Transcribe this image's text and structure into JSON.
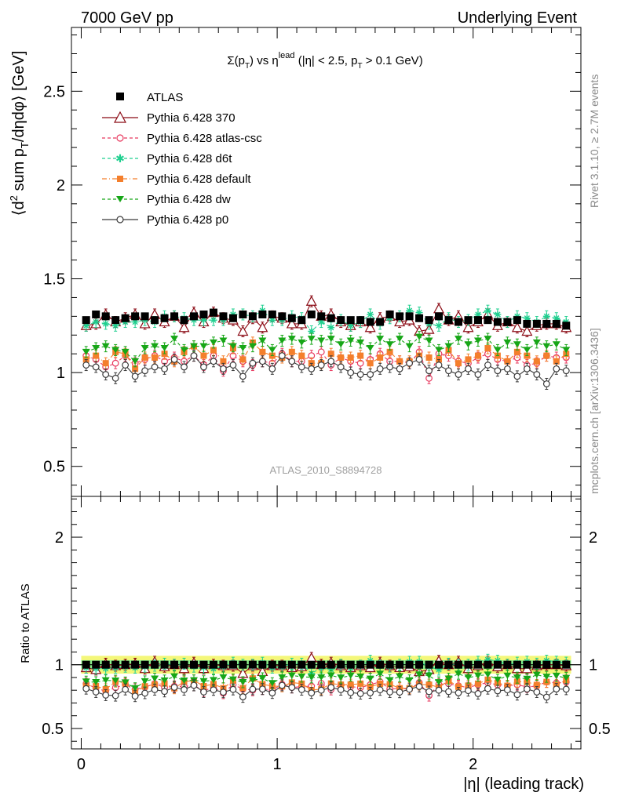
{
  "header": {
    "left": "7000 GeV pp",
    "right": "Underlying Event"
  },
  "side_labels": {
    "rivet": "Rivet 3.1.10, ≥ 2.7M events",
    "mcplots": "mcplots.cern.ch [arXiv:1306.3436]"
  },
  "colors": {
    "atlas": "#000000",
    "p370": "#8b0a14",
    "atlas_csc": "#e8385e",
    "d6t": "#1fcf8f",
    "default": "#f47f2c",
    "dw": "#17a617",
    "p0": "#3a3a3a",
    "band_yellow": "#f4f77a",
    "band_green": "#8cf08c"
  },
  "chart_data": [
    {
      "type": "scatter",
      "panel": "main",
      "title": "Σ(p_T) vs η^lead (|η| < 2.5, p_T > 0.1 GeV)",
      "title_parts": {
        "a": "Σ(p",
        "a_sub": "T",
        "b": ") vs η",
        "b_sup": "lead",
        "c": " (|η| < 2.5, p",
        "c_sub": "T",
        "d": " > 0.1 GeV)"
      },
      "ylabel": "⟨d² sum p_T/dηdφ⟩ [GeV]",
      "ylabel_parts": {
        "a": "⟨d",
        "a_sup": "2",
        "b": " sum p",
        "b_sub": "T",
        "c": "/dηdφ⟩ [GeV]"
      },
      "watermark": "ATLAS_2010_S8894728",
      "xlim": [
        -0.05,
        2.55
      ],
      "ylim": [
        0.34,
        2.84
      ],
      "yticks": [
        0.5,
        1,
        1.5,
        2,
        2.5
      ],
      "ytick_labels": [
        "0.5",
        "1",
        "1.5",
        "2",
        "2.5"
      ],
      "legend_position": "top-left",
      "x": [
        0.025,
        0.075,
        0.125,
        0.175,
        0.225,
        0.275,
        0.325,
        0.375,
        0.425,
        0.475,
        0.525,
        0.575,
        0.625,
        0.675,
        0.725,
        0.775,
        0.825,
        0.875,
        0.925,
        0.975,
        1.025,
        1.075,
        1.125,
        1.175,
        1.225,
        1.275,
        1.325,
        1.375,
        1.425,
        1.475,
        1.525,
        1.575,
        1.625,
        1.675,
        1.725,
        1.775,
        1.825,
        1.875,
        1.925,
        1.975,
        2.025,
        2.075,
        2.125,
        2.175,
        2.225,
        2.275,
        2.325,
        2.375,
        2.425,
        2.475
      ],
      "series": [
        {
          "name": "ATLAS",
          "marker": "square",
          "style": "none",
          "values": [
            1.28,
            1.31,
            1.3,
            1.28,
            1.29,
            1.3,
            1.3,
            1.28,
            1.29,
            1.3,
            1.28,
            1.3,
            1.31,
            1.32,
            1.3,
            1.29,
            1.31,
            1.3,
            1.31,
            1.31,
            1.3,
            1.29,
            1.28,
            1.31,
            1.3,
            1.29,
            1.28,
            1.28,
            1.28,
            1.27,
            1.27,
            1.31,
            1.3,
            1.3,
            1.29,
            1.28,
            1.3,
            1.28,
            1.27,
            1.28,
            1.28,
            1.28,
            1.27,
            1.27,
            1.28,
            1.26,
            1.26,
            1.26,
            1.26,
            1.25
          ]
        },
        {
          "name": "Pythia 6.428 370",
          "marker": "triangle-open",
          "style": "solid",
          "values": [
            1.25,
            1.26,
            1.31,
            1.27,
            1.29,
            1.31,
            1.26,
            1.31,
            1.27,
            1.3,
            1.24,
            1.32,
            1.27,
            1.32,
            1.29,
            1.28,
            1.22,
            1.29,
            1.24,
            1.3,
            1.29,
            1.26,
            1.26,
            1.38,
            1.3,
            1.31,
            1.27,
            1.25,
            1.27,
            1.24,
            1.29,
            1.3,
            1.27,
            1.28,
            1.22,
            1.23,
            1.34,
            1.28,
            1.3,
            1.24,
            1.27,
            1.31,
            1.25,
            1.27,
            1.24,
            1.22,
            1.25,
            1.26,
            1.26,
            1.24
          ]
        },
        {
          "name": "Pythia 6.428 atlas-csc",
          "marker": "circle-open",
          "style": "dashed",
          "values": [
            1.09,
            1.07,
            1.03,
            1.05,
            1.09,
            1.05,
            1.07,
            1.09,
            1.06,
            1.08,
            1.06,
            1.09,
            1.04,
            1.09,
            1.01,
            1.09,
            1.06,
            1.04,
            1.06,
            1.05,
            1.1,
            1.06,
            1.06,
            1.09,
            1.11,
            1.04,
            1.08,
            1.06,
            1.05,
            1.07,
            1.1,
            1.06,
            1.06,
            1.05,
            1.11,
            0.97,
            1.1,
            1.09,
            1.06,
            1.05,
            1.08,
            1.1,
            1.07,
            1.06,
            1.08,
            1.04,
            1.05,
            1.09,
            1.08,
            1.08
          ]
        },
        {
          "name": "Pythia 6.428 d6t",
          "marker": "star",
          "style": "dashed",
          "values": [
            1.25,
            1.27,
            1.26,
            1.25,
            1.27,
            1.27,
            1.28,
            1.27,
            1.3,
            1.3,
            1.29,
            1.28,
            1.28,
            1.28,
            1.28,
            1.31,
            1.31,
            1.3,
            1.33,
            1.28,
            1.28,
            1.3,
            1.29,
            1.22,
            1.27,
            1.24,
            1.28,
            1.25,
            1.27,
            1.31,
            1.26,
            1.29,
            1.3,
            1.33,
            1.32,
            1.26,
            1.25,
            1.29,
            1.27,
            1.28,
            1.31,
            1.33,
            1.31,
            1.27,
            1.3,
            1.29,
            1.27,
            1.3,
            1.29,
            1.27
          ]
        },
        {
          "name": "Pythia 6.428 default",
          "marker": "square-filled",
          "style": "dashdot",
          "values": [
            1.07,
            1.09,
            1.05,
            1.11,
            1.1,
            1.02,
            1.08,
            1.08,
            1.1,
            1.06,
            1.11,
            1.14,
            1.09,
            1.12,
            1.06,
            1.13,
            1.07,
            1.16,
            1.11,
            1.09,
            1.08,
            1.11,
            1.09,
            1.05,
            1.05,
            1.1,
            1.08,
            1.08,
            1.09,
            1.05,
            1.08,
            1.11,
            1.06,
            1.06,
            1.09,
            1.08,
            1.07,
            1.12,
            1.05,
            1.07,
            1.09,
            1.13,
            1.09,
            1.06,
            1.11,
            1.09,
            1.06,
            1.09,
            1.06,
            1.1
          ]
        },
        {
          "name": "Pythia 6.428 dw",
          "marker": "triangle-down-filled",
          "style": "dashed",
          "values": [
            1.11,
            1.13,
            1.14,
            1.12,
            1.11,
            1.06,
            1.13,
            1.14,
            1.13,
            1.18,
            1.12,
            1.14,
            1.14,
            1.16,
            1.17,
            1.14,
            1.13,
            1.14,
            1.17,
            1.12,
            1.17,
            1.18,
            1.16,
            1.18,
            1.17,
            1.18,
            1.15,
            1.17,
            1.16,
            1.13,
            1.18,
            1.15,
            1.18,
            1.14,
            1.19,
            1.17,
            1.12,
            1.14,
            1.18,
            1.15,
            1.17,
            1.18,
            1.12,
            1.16,
            1.15,
            1.12,
            1.16,
            1.14,
            1.15,
            1.12
          ]
        },
        {
          "name": "Pythia 6.428 p0",
          "marker": "circle-open",
          "style": "solid",
          "values": [
            1.04,
            1.03,
            0.99,
            0.97,
            1.04,
            0.98,
            1.01,
            1.03,
            1.02,
            1.07,
            1.03,
            1.09,
            1.03,
            1.06,
            1.02,
            1.04,
            0.98,
            1.05,
            1.06,
            1.02,
            1.09,
            1.06,
            1.03,
            1.02,
            1.04,
            1.06,
            1.03,
            1.0,
            0.99,
            0.99,
            1.02,
            1.03,
            1.02,
            1.05,
            1.07,
            1.01,
            1.04,
            1.01,
            0.99,
            1.02,
            0.99,
            1.04,
            1.01,
            1.02,
            0.98,
            1.02,
            0.99,
            0.94,
            1.02,
            1.01
          ]
        }
      ]
    },
    {
      "type": "scatter",
      "panel": "ratio",
      "xlabel": "|η| (leading track)",
      "ylabel": "Ratio to ATLAS",
      "xlim": [
        -0.05,
        2.55
      ],
      "ylim": [
        0.34,
        2.32
      ],
      "xticks": [
        0,
        1,
        2
      ],
      "xtick_labels": [
        "0",
        "1",
        "2"
      ],
      "yticks": [
        0.5,
        1,
        2
      ],
      "ytick_labels": [
        "0.5",
        "1",
        "2"
      ],
      "band_green_halfwidth": 0.035,
      "band_yellow_halfwidth": 0.07,
      "reference_line": 1.0
    }
  ]
}
